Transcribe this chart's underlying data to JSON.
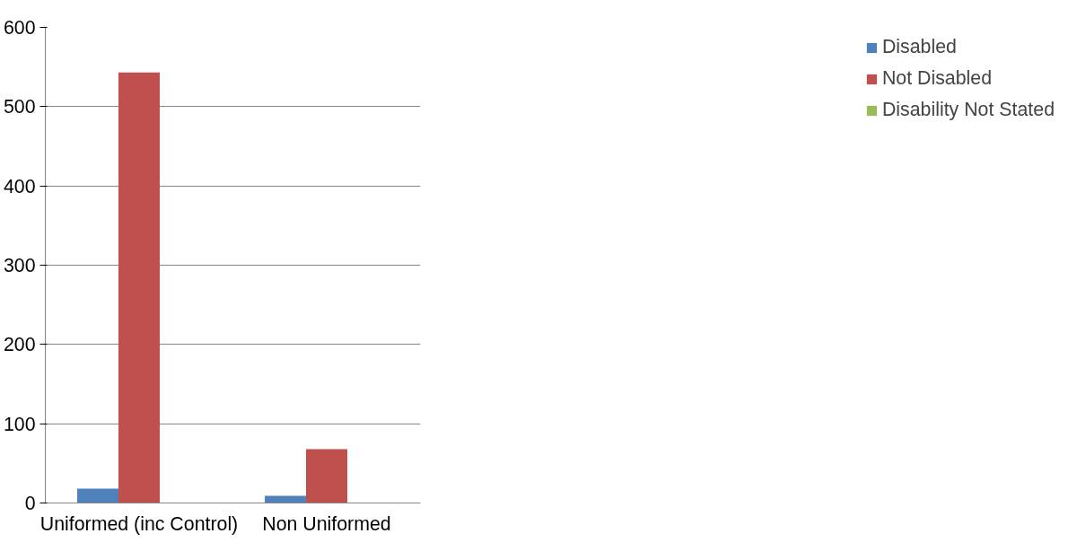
{
  "chart_data": {
    "type": "bar",
    "categories": [
      "Uniformed (inc Control)",
      "Non Uniformed"
    ],
    "series": [
      {
        "name": "Disabled",
        "color": "#4f81bd",
        "values": [
          18,
          9
        ]
      },
      {
        "name": "Not Disabled",
        "color": "#c0504d",
        "values": [
          543,
          68
        ]
      },
      {
        "name": "Disability Not Stated",
        "color": "#9bbb59",
        "values": [
          0,
          0
        ]
      }
    ],
    "ylim": [
      0,
      600
    ],
    "yticks": [
      0,
      100,
      200,
      300,
      400,
      500,
      600
    ],
    "grid": "y",
    "legend": "right"
  }
}
